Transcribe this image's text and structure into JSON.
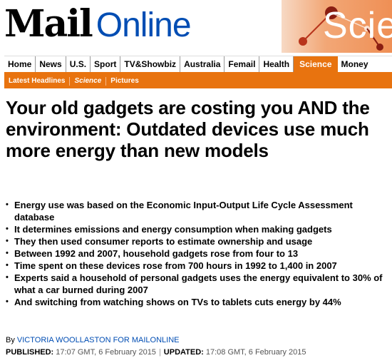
{
  "brand": {
    "mail": "Mail",
    "online": "Online",
    "section_banner": "Scie"
  },
  "nav": {
    "items": [
      "Home",
      "News",
      "U.S.",
      "Sport",
      "TV&Showbiz",
      "Australia",
      "Femail",
      "Health",
      "Science",
      "Money"
    ],
    "active": "Science"
  },
  "subnav": {
    "items": [
      "Latest Headlines",
      "Science",
      "Pictures"
    ]
  },
  "article": {
    "headline": "Your old gadgets are costing you AND the environment: Outdated devices use much more energy than new models",
    "bullets": [
      "Energy use was based on the Economic Input-Output Life Cycle Assessment database",
      "It determines emissions and energy consumption when making gadgets",
      "They then used consumer reports to estimate ownership and usage",
      "Between 1992 and 2007, household gadgets rose from four to 13",
      "Time spent on these devices rose from 700 hours in 1992 to 1,400 in 2007",
      "Experts said a household of personal gadgets uses the energy equivalent to 30% of what a car burned during 2007",
      "And switching from watching shows on TVs to tablets cuts energy by 44%"
    ],
    "byline_prefix": "By",
    "author": "VICTORIA WOOLLASTON FOR MAILONLINE",
    "published_label": "PUBLISHED:",
    "published": "17:07 GMT, 6 February 2015",
    "updated_label": "UPDATED:",
    "updated": "17:08 GMT, 6 February 2015"
  },
  "colors": {
    "accent": "#e8730f",
    "link": "#004db3"
  }
}
